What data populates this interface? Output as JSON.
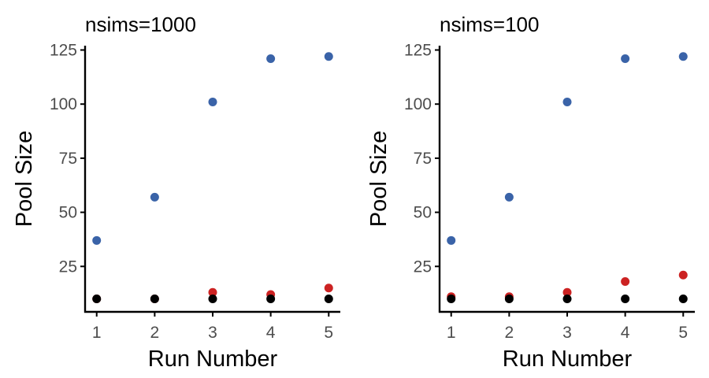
{
  "chart_data": [
    {
      "type": "scatter",
      "title": "nsims=1000",
      "xlabel": "Run Number",
      "ylabel": "Pool Size",
      "x": [
        1,
        2,
        3,
        4,
        5
      ],
      "xticks": [
        "1",
        "2",
        "3",
        "4",
        "5"
      ],
      "xlim": [
        0.8,
        5.2
      ],
      "yticks": [
        "25",
        "50",
        "75",
        "100",
        "125"
      ],
      "ylim": [
        4,
        127
      ],
      "grid": false,
      "legend": "none",
      "series": [
        {
          "color": "#3a63a8",
          "values": [
            37,
            57,
            101,
            121,
            122
          ]
        },
        {
          "color": "#cc2222",
          "values": [
            10,
            10,
            13,
            12,
            15
          ]
        },
        {
          "color": "#000000",
          "values": [
            10,
            10,
            10,
            10,
            10
          ]
        }
      ]
    },
    {
      "type": "scatter",
      "title": "nsims=100",
      "xlabel": "Run Number",
      "ylabel": "Pool Size",
      "x": [
        1,
        2,
        3,
        4,
        5
      ],
      "xticks": [
        "1",
        "2",
        "3",
        "4",
        "5"
      ],
      "xlim": [
        0.8,
        5.2
      ],
      "yticks": [
        "25",
        "50",
        "75",
        "100",
        "125"
      ],
      "ylim": [
        4,
        127
      ],
      "grid": false,
      "legend": "none",
      "series": [
        {
          "color": "#3a63a8",
          "values": [
            37,
            57,
            101,
            121,
            122
          ]
        },
        {
          "color": "#cc2222",
          "values": [
            11,
            11,
            13,
            18,
            21
          ]
        },
        {
          "color": "#000000",
          "values": [
            10,
            10,
            10,
            10,
            10
          ]
        }
      ]
    }
  ]
}
